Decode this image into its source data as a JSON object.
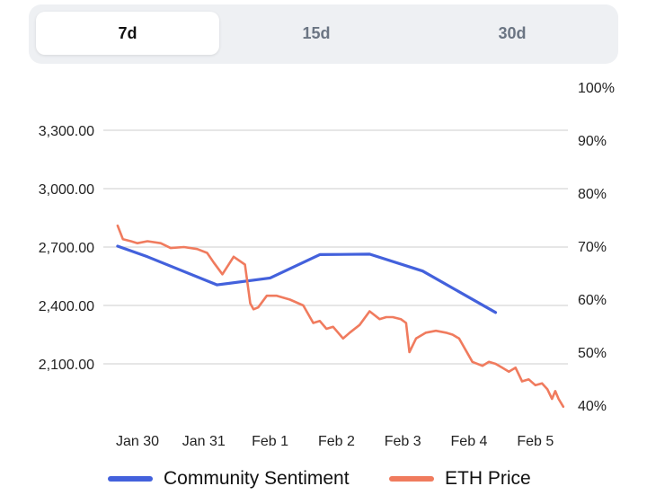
{
  "tabs": [
    {
      "label": "7d",
      "active": true
    },
    {
      "label": "15d",
      "active": false
    },
    {
      "label": "30d",
      "active": false
    }
  ],
  "colors": {
    "sentiment": "#4361dc",
    "price": "#f07b5e",
    "grid": "#d6d6d6",
    "text": "#222222"
  },
  "chart_data": {
    "type": "line",
    "categories": [
      "Jan 30",
      "Jan 31",
      "Feb 1",
      "Feb 2",
      "Feb 3",
      "Feb 4",
      "Feb 5"
    ],
    "left_axis": {
      "ticks": [
        2100,
        2400,
        2700,
        3000,
        3300
      ],
      "tick_labels": [
        "2,100.00",
        "2,400.00",
        "2,700.00",
        "3,000.00",
        "3,300.00"
      ],
      "ylim": [
        1880,
        3300
      ]
    },
    "right_axis": {
      "ticks": [
        40,
        50,
        60,
        70,
        80,
        90,
        100
      ],
      "tick_labels": [
        "40%",
        "50%",
        "60%",
        "70%",
        "80%",
        "90%",
        "100%"
      ],
      "ylim": [
        40,
        100
      ]
    },
    "series": [
      {
        "name": "Community Sentiment",
        "axis": "right",
        "x": [
          -0.3,
          0.15,
          1.2,
          2.0,
          2.75,
          3.5,
          4.3,
          5.4
        ],
        "values": [
          70,
          68,
          62.7,
          64,
          68.4,
          68.5,
          65.3,
          57.5
        ]
      },
      {
        "name": "ETH Price",
        "axis": "left",
        "x": [
          -0.3,
          -0.22,
          -0.1,
          0.0,
          0.15,
          0.35,
          0.5,
          0.7,
          0.9,
          1.05,
          1.15,
          1.28,
          1.45,
          1.62,
          1.7,
          1.75,
          1.82,
          1.95,
          2.1,
          2.3,
          2.5,
          2.65,
          2.75,
          2.85,
          2.95,
          3.1,
          3.2,
          3.35,
          3.5,
          3.65,
          3.75,
          3.85,
          3.97,
          4.05,
          4.1,
          4.2,
          4.35,
          4.5,
          4.65,
          4.75,
          4.85,
          4.95,
          5.05,
          5.2,
          5.3,
          5.4,
          5.5,
          5.6,
          5.7,
          5.8,
          5.9,
          6.0,
          6.1,
          6.18,
          6.25,
          6.3,
          6.35,
          6.42
        ],
        "values": [
          2810,
          2740,
          2730,
          2720,
          2730,
          2720,
          2695,
          2700,
          2690,
          2670,
          2620,
          2560,
          2650,
          2610,
          2410,
          2380,
          2390,
          2450,
          2450,
          2430,
          2400,
          2310,
          2320,
          2280,
          2290,
          2230,
          2260,
          2300,
          2370,
          2330,
          2340,
          2340,
          2330,
          2310,
          2160,
          2230,
          2260,
          2270,
          2260,
          2250,
          2230,
          2170,
          2110,
          2090,
          2110,
          2100,
          2080,
          2060,
          2080,
          2010,
          2020,
          1990,
          2000,
          1970,
          1920,
          1960,
          1920,
          1880
        ]
      }
    ]
  },
  "legend": [
    {
      "label": "Community Sentiment"
    },
    {
      "label": "ETH Price"
    }
  ]
}
